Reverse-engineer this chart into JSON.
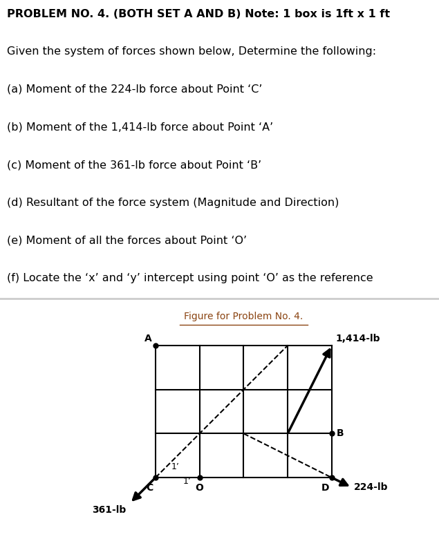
{
  "title_text": "PROBLEM NO. 4. (BOTH SET A AND B) Note: 1 box is 1ft x 1 ft",
  "description_lines": [
    "Given the system of forces shown below, Determine the following:",
    "(a) Moment of the 224-lb force about Point ‘C’",
    "(b) Moment of the 1,414-lb force about Point ‘A’",
    "(c) Moment of the 361-lb force about Point ‘B’",
    "(d) Resultant of the force system (Magnitude and Direction)",
    "(e) Moment of all the forces about Point ‘O’",
    "(f) Locate the ‘x’ and ‘y’ intercept using point ‘O’ as the reference"
  ],
  "figure_title": "Figure for Problem No. 4.",
  "grid_cols": 4,
  "grid_rows": 3,
  "points": {
    "A": [
      0,
      3
    ],
    "B": [
      4,
      1
    ],
    "C": [
      0,
      0
    ],
    "O": [
      1,
      0
    ],
    "D": [
      4,
      0
    ]
  },
  "force_1414_label": "1,414-lb",
  "force_1414_from": [
    3,
    1
  ],
  "force_1414_to": [
    4,
    3
  ],
  "force_361_label": "361-lb",
  "force_224_label": "224-lb",
  "dim_label": "1’",
  "bg_color": "#ffffff",
  "text_color": "#000000",
  "grid_color": "#000000",
  "separator_color": "#cccccc",
  "figure_title_color": "#8B4513"
}
